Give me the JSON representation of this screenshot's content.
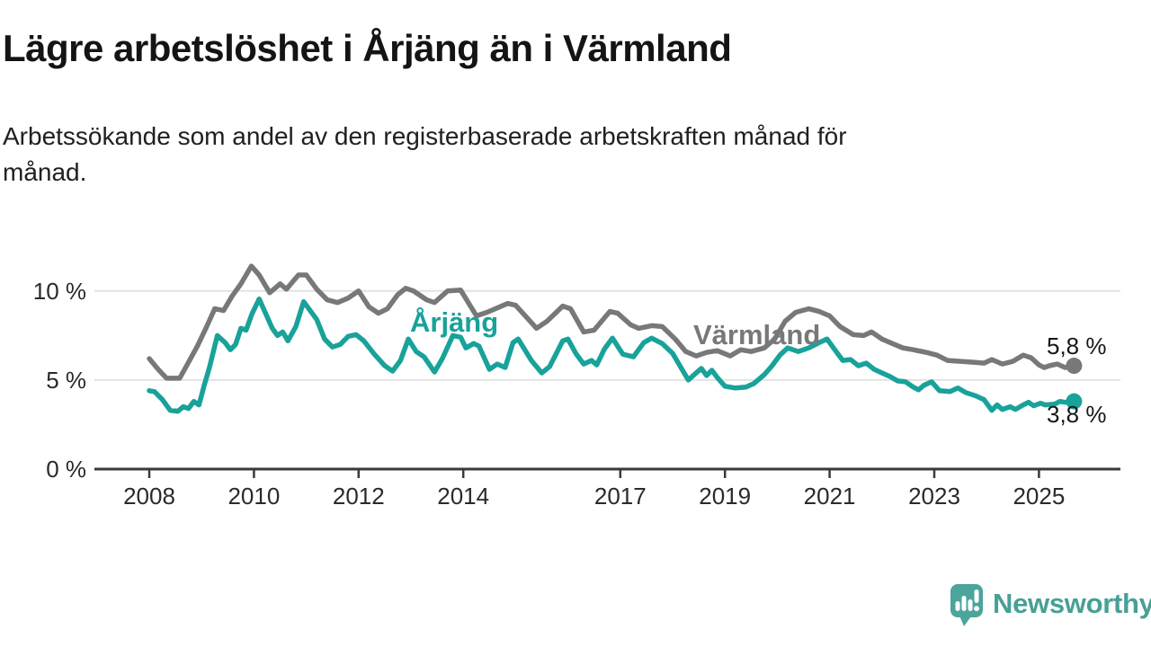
{
  "header": {
    "title": "Lägre arbetslöshet i Årjäng än i Värmland",
    "subtitle": "Arbetssökande som andel av den registerbaserade arbetskraften månad för månad."
  },
  "branding": {
    "name": "Newsworthy",
    "icon": "speech-bubble-bar-chart-icon",
    "color": "#46A096"
  },
  "colors": {
    "arjang_line": "#18A29A",
    "varmland_line": "#77787A",
    "axis": "#3A3A3C",
    "grid": "#E3E3E3",
    "text": "#1A1A1A"
  },
  "chart_data": {
    "type": "line",
    "unit": "%",
    "grid": "horizontal",
    "legend_position": "inline-labels",
    "xlim": [
      2007.0,
      2026.6
    ],
    "ylim": [
      0,
      12.3
    ],
    "x_tick_years": [
      2008,
      2010,
      2012,
      2014,
      2017,
      2019,
      2021,
      2023,
      2025
    ],
    "x_tick_labels": [
      "2008",
      "2010",
      "2012",
      "2014",
      "2017",
      "2019",
      "2021",
      "2023",
      "2025"
    ],
    "y_tick_values": [
      0,
      5,
      10
    ],
    "y_tick_labels": [
      "0 %",
      "5 %",
      "10 %"
    ],
    "series": [
      {
        "name": "Värmland",
        "color": "#77787A",
        "end_value": 5.8,
        "end_label": "5,8 %",
        "points": [
          [
            2008.0,
            6.2
          ],
          [
            2008.17,
            5.6
          ],
          [
            2008.33,
            5.1
          ],
          [
            2008.58,
            5.1
          ],
          [
            2008.75,
            6.0
          ],
          [
            2008.92,
            6.9
          ],
          [
            2009.08,
            7.9
          ],
          [
            2009.25,
            9.0
          ],
          [
            2009.42,
            8.9
          ],
          [
            2009.58,
            9.7
          ],
          [
            2009.75,
            10.4
          ],
          [
            2009.95,
            11.4
          ],
          [
            2010.1,
            10.9
          ],
          [
            2010.3,
            9.9
          ],
          [
            2010.5,
            10.4
          ],
          [
            2010.62,
            10.1
          ],
          [
            2010.85,
            10.9
          ],
          [
            2011.0,
            10.9
          ],
          [
            2011.2,
            10.1
          ],
          [
            2011.4,
            9.5
          ],
          [
            2011.6,
            9.35
          ],
          [
            2011.8,
            9.6
          ],
          [
            2012.0,
            10.0
          ],
          [
            2012.2,
            9.1
          ],
          [
            2012.38,
            8.75
          ],
          [
            2012.55,
            9.0
          ],
          [
            2012.75,
            9.8
          ],
          [
            2012.9,
            10.15
          ],
          [
            2013.05,
            10.0
          ],
          [
            2013.3,
            9.5
          ],
          [
            2013.45,
            9.35
          ],
          [
            2013.7,
            10.0
          ],
          [
            2013.95,
            10.05
          ],
          [
            2014.25,
            8.6
          ],
          [
            2014.45,
            8.8
          ],
          [
            2014.85,
            9.3
          ],
          [
            2015.0,
            9.2
          ],
          [
            2015.4,
            7.9
          ],
          [
            2015.6,
            8.3
          ],
          [
            2015.9,
            9.15
          ],
          [
            2016.05,
            9.0
          ],
          [
            2016.3,
            7.7
          ],
          [
            2016.5,
            7.8
          ],
          [
            2016.8,
            8.85
          ],
          [
            2016.95,
            8.75
          ],
          [
            2017.2,
            8.1
          ],
          [
            2017.35,
            7.9
          ],
          [
            2017.6,
            8.05
          ],
          [
            2017.8,
            8.0
          ],
          [
            2018.05,
            7.3
          ],
          [
            2018.25,
            6.6
          ],
          [
            2018.45,
            6.35
          ],
          [
            2018.65,
            6.55
          ],
          [
            2018.85,
            6.65
          ],
          [
            2019.1,
            6.35
          ],
          [
            2019.3,
            6.7
          ],
          [
            2019.5,
            6.6
          ],
          [
            2019.75,
            6.8
          ],
          [
            2019.95,
            7.3
          ],
          [
            2020.15,
            8.3
          ],
          [
            2020.35,
            8.8
          ],
          [
            2020.6,
            9.0
          ],
          [
            2020.8,
            8.85
          ],
          [
            2021.0,
            8.6
          ],
          [
            2021.2,
            8.0
          ],
          [
            2021.45,
            7.55
          ],
          [
            2021.65,
            7.5
          ],
          [
            2021.8,
            7.7
          ],
          [
            2022.0,
            7.3
          ],
          [
            2022.2,
            7.05
          ],
          [
            2022.4,
            6.8
          ],
          [
            2022.6,
            6.7
          ],
          [
            2022.85,
            6.55
          ],
          [
            2023.05,
            6.4
          ],
          [
            2023.25,
            6.1
          ],
          [
            2023.5,
            6.05
          ],
          [
            2023.75,
            6.0
          ],
          [
            2023.95,
            5.95
          ],
          [
            2024.1,
            6.15
          ],
          [
            2024.3,
            5.9
          ],
          [
            2024.5,
            6.05
          ],
          [
            2024.7,
            6.4
          ],
          [
            2024.85,
            6.25
          ],
          [
            2025.0,
            5.85
          ],
          [
            2025.1,
            5.7
          ],
          [
            2025.2,
            5.8
          ],
          [
            2025.35,
            5.9
          ],
          [
            2025.5,
            5.7
          ],
          [
            2025.67,
            5.8
          ]
        ]
      },
      {
        "name": "Årjäng",
        "color": "#18A29A",
        "end_value": 3.8,
        "end_label": "3,8 %",
        "points": [
          [
            2008.0,
            4.4
          ],
          [
            2008.1,
            4.35
          ],
          [
            2008.25,
            3.9
          ],
          [
            2008.4,
            3.3
          ],
          [
            2008.55,
            3.25
          ],
          [
            2008.65,
            3.5
          ],
          [
            2008.75,
            3.4
          ],
          [
            2008.85,
            3.8
          ],
          [
            2008.95,
            3.6
          ],
          [
            2009.05,
            4.7
          ],
          [
            2009.15,
            5.7
          ],
          [
            2009.3,
            7.5
          ],
          [
            2009.45,
            7.1
          ],
          [
            2009.55,
            6.7
          ],
          [
            2009.65,
            7.0
          ],
          [
            2009.75,
            7.9
          ],
          [
            2009.85,
            7.8
          ],
          [
            2009.96,
            8.7
          ],
          [
            2010.1,
            9.55
          ],
          [
            2010.2,
            8.9
          ],
          [
            2010.35,
            7.9
          ],
          [
            2010.45,
            7.5
          ],
          [
            2010.55,
            7.7
          ],
          [
            2010.65,
            7.2
          ],
          [
            2010.8,
            8.0
          ],
          [
            2010.95,
            9.4
          ],
          [
            2011.05,
            9.0
          ],
          [
            2011.2,
            8.4
          ],
          [
            2011.35,
            7.3
          ],
          [
            2011.5,
            6.85
          ],
          [
            2011.65,
            7.0
          ],
          [
            2011.8,
            7.45
          ],
          [
            2011.95,
            7.55
          ],
          [
            2012.1,
            7.2
          ],
          [
            2012.3,
            6.45
          ],
          [
            2012.5,
            5.8
          ],
          [
            2012.65,
            5.5
          ],
          [
            2012.8,
            6.1
          ],
          [
            2012.95,
            7.3
          ],
          [
            2013.1,
            6.6
          ],
          [
            2013.25,
            6.3
          ],
          [
            2013.45,
            5.45
          ],
          [
            2013.6,
            6.2
          ],
          [
            2013.8,
            7.5
          ],
          [
            2013.95,
            7.4
          ],
          [
            2014.05,
            6.8
          ],
          [
            2014.2,
            7.05
          ],
          [
            2014.3,
            6.9
          ],
          [
            2014.5,
            5.6
          ],
          [
            2014.65,
            5.9
          ],
          [
            2014.8,
            5.7
          ],
          [
            2014.95,
            7.1
          ],
          [
            2015.05,
            7.3
          ],
          [
            2015.3,
            6.1
          ],
          [
            2015.5,
            5.4
          ],
          [
            2015.65,
            5.75
          ],
          [
            2015.9,
            7.2
          ],
          [
            2016.0,
            7.3
          ],
          [
            2016.15,
            6.5
          ],
          [
            2016.3,
            5.9
          ],
          [
            2016.45,
            6.1
          ],
          [
            2016.55,
            5.85
          ],
          [
            2016.7,
            6.75
          ],
          [
            2016.85,
            7.35
          ],
          [
            2017.05,
            6.45
          ],
          [
            2017.25,
            6.3
          ],
          [
            2017.45,
            7.1
          ],
          [
            2017.6,
            7.35
          ],
          [
            2017.8,
            7.05
          ],
          [
            2018.0,
            6.5
          ],
          [
            2018.2,
            5.5
          ],
          [
            2018.3,
            5.0
          ],
          [
            2018.45,
            5.4
          ],
          [
            2018.55,
            5.65
          ],
          [
            2018.65,
            5.25
          ],
          [
            2018.75,
            5.55
          ],
          [
            2018.85,
            5.15
          ],
          [
            2019.0,
            4.65
          ],
          [
            2019.2,
            4.55
          ],
          [
            2019.4,
            4.6
          ],
          [
            2019.55,
            4.8
          ],
          [
            2019.75,
            5.3
          ],
          [
            2019.9,
            5.8
          ],
          [
            2020.05,
            6.4
          ],
          [
            2020.2,
            6.8
          ],
          [
            2020.4,
            6.6
          ],
          [
            2020.6,
            6.8
          ],
          [
            2020.8,
            7.1
          ],
          [
            2020.95,
            7.3
          ],
          [
            2021.1,
            6.7
          ],
          [
            2021.25,
            6.1
          ],
          [
            2021.4,
            6.15
          ],
          [
            2021.55,
            5.8
          ],
          [
            2021.7,
            5.95
          ],
          [
            2021.85,
            5.6
          ],
          [
            2022.0,
            5.4
          ],
          [
            2022.15,
            5.2
          ],
          [
            2022.3,
            4.95
          ],
          [
            2022.45,
            4.9
          ],
          [
            2022.6,
            4.6
          ],
          [
            2022.7,
            4.45
          ],
          [
            2022.8,
            4.7
          ],
          [
            2022.95,
            4.9
          ],
          [
            2023.1,
            4.4
          ],
          [
            2023.3,
            4.35
          ],
          [
            2023.45,
            4.55
          ],
          [
            2023.6,
            4.3
          ],
          [
            2023.8,
            4.1
          ],
          [
            2023.95,
            3.9
          ],
          [
            2024.1,
            3.3
          ],
          [
            2024.2,
            3.6
          ],
          [
            2024.3,
            3.35
          ],
          [
            2024.45,
            3.5
          ],
          [
            2024.55,
            3.35
          ],
          [
            2024.7,
            3.6
          ],
          [
            2024.8,
            3.75
          ],
          [
            2024.9,
            3.55
          ],
          [
            2025.03,
            3.7
          ],
          [
            2025.12,
            3.6
          ],
          [
            2025.3,
            3.65
          ],
          [
            2025.4,
            3.8
          ],
          [
            2025.5,
            3.75
          ],
          [
            2025.67,
            3.8
          ]
        ]
      }
    ]
  }
}
